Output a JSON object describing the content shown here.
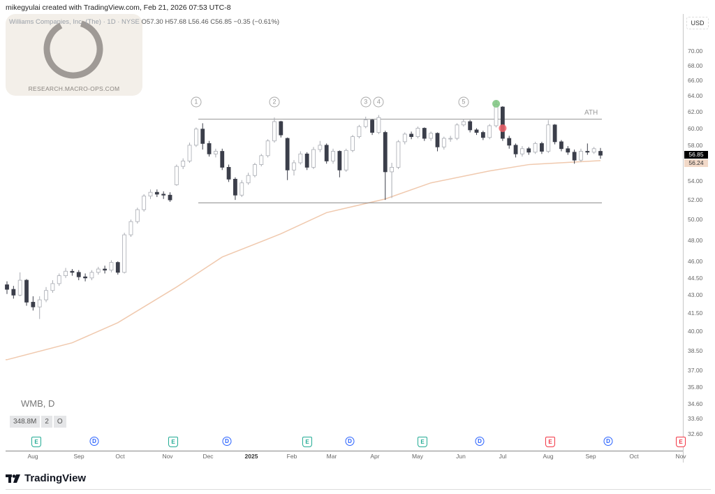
{
  "header": {
    "credit": "mikegyulai created with TradingView.com, Feb 21, 2026 07:53 UTC-8",
    "instrument": "Williams Companies, Inc. (The) · 1D · NYSE",
    "ohlc": "O57.30  H57.68  L56.46  C56.85  −0.35 (−0.61%)"
  },
  "watermark": {
    "text": "RESEARCH.MACRO-OPS.COM"
  },
  "symbol_label": "WMB, D",
  "badges": [
    "348.8M",
    "2",
    "O"
  ],
  "currency": "USD",
  "brand": "TradingView",
  "colors": {
    "up": "#ffffff",
    "up_border": "#a8abb2",
    "down": "#3b3e4a",
    "ma": "#f0c9ae",
    "last_price_bg": "#000000",
    "ma_label_bg": "#f2d9c8",
    "earnings": "#22ab94",
    "earnings_upcoming": "#f23645",
    "dividend": "#2962ff",
    "ath_marker": "#7cc47f",
    "break_marker": "#f0636b"
  },
  "chart_data": {
    "type": "candlestick",
    "scale": "log",
    "ylim": [
      32.6,
      70
    ],
    "grid": false,
    "y_ticks": [
      "70.00",
      "68.00",
      "66.00",
      "64.00",
      "62.00",
      "60.00",
      "58.00",
      "54.00",
      "52.00",
      "50.00",
      "48.00",
      "46.00",
      "44.50",
      "43.00",
      "41.50",
      "40.00",
      "38.50",
      "37.00",
      "35.80",
      "34.60",
      "33.60",
      "32.60"
    ],
    "x_ticks": [
      "Aug",
      "Sep",
      "Oct",
      "Nov",
      "Dec",
      "2025",
      "Feb",
      "Mar",
      "Apr",
      "May",
      "Jun",
      "Jul",
      "Aug",
      "Sep",
      "Oct",
      "Nov"
    ],
    "last_price": "56.85",
    "ma_value": "56.24",
    "candles": [
      [
        43.9,
        44.2,
        43.1,
        43.5
      ],
      [
        43.5,
        43.8,
        42.7,
        43.0
      ],
      [
        43.0,
        45.0,
        42.9,
        44.3
      ],
      [
        44.3,
        44.4,
        42.1,
        42.4
      ],
      [
        42.4,
        42.9,
        41.7,
        42.0
      ],
      [
        42.0,
        42.9,
        41.0,
        42.6
      ],
      [
        42.6,
        43.7,
        42.4,
        43.4
      ],
      [
        43.4,
        44.3,
        43.2,
        44.0
      ],
      [
        44.0,
        44.9,
        43.8,
        44.7
      ],
      [
        44.7,
        45.4,
        44.5,
        45.1
      ],
      [
        45.1,
        45.3,
        44.7,
        45.0
      ],
      [
        45.0,
        45.2,
        44.3,
        44.6
      ],
      [
        44.6,
        44.9,
        44.2,
        44.5
      ],
      [
        44.5,
        45.2,
        44.3,
        45.0
      ],
      [
        45.0,
        45.5,
        44.8,
        45.3
      ],
      [
        45.3,
        45.6,
        44.9,
        45.2
      ],
      [
        45.2,
        46.1,
        45.0,
        45.9
      ],
      [
        45.9,
        46.0,
        44.8,
        45.0
      ],
      [
        45.0,
        48.7,
        44.9,
        48.5
      ],
      [
        48.5,
        50.0,
        48.3,
        49.8
      ],
      [
        49.8,
        51.2,
        49.6,
        51.0
      ],
      [
        51.0,
        52.6,
        50.8,
        52.4
      ],
      [
        52.4,
        53.1,
        52.1,
        52.8
      ],
      [
        52.8,
        53.1,
        52.3,
        52.6
      ],
      [
        52.6,
        52.9,
        52.1,
        52.5
      ],
      [
        52.5,
        52.8,
        51.8,
        52.0
      ],
      [
        53.6,
        55.8,
        53.5,
        55.6
      ],
      [
        55.6,
        56.5,
        55.3,
        56.2
      ],
      [
        56.2,
        58.3,
        56.0,
        58.0
      ],
      [
        58.0,
        60.1,
        57.8,
        59.9
      ],
      [
        59.9,
        60.6,
        57.5,
        58.2
      ],
      [
        58.2,
        58.5,
        56.7,
        57.0
      ],
      [
        57.0,
        57.6,
        56.6,
        57.3
      ],
      [
        57.3,
        57.6,
        55.2,
        55.5
      ],
      [
        55.5,
        55.8,
        53.9,
        54.2
      ],
      [
        54.2,
        54.4,
        52.0,
        52.5
      ],
      [
        52.5,
        54.1,
        52.3,
        53.8
      ],
      [
        53.8,
        54.9,
        53.6,
        54.6
      ],
      [
        54.6,
        56.0,
        54.4,
        55.8
      ],
      [
        55.8,
        57.0,
        55.6,
        56.8
      ],
      [
        56.8,
        58.7,
        56.6,
        58.5
      ],
      [
        58.5,
        61.3,
        58.3,
        60.8
      ],
      [
        60.8,
        60.9,
        58.9,
        59.2
      ],
      [
        58.8,
        58.9,
        54.1,
        55.2
      ],
      [
        55.2,
        56.3,
        54.6,
        56.0
      ],
      [
        56.0,
        57.3,
        55.8,
        57.0
      ],
      [
        57.0,
        57.2,
        55.2,
        55.5
      ],
      [
        55.5,
        57.8,
        55.3,
        57.5
      ],
      [
        57.5,
        58.5,
        57.2,
        58.0
      ],
      [
        58.0,
        58.2,
        55.9,
        56.2
      ],
      [
        56.2,
        57.6,
        55.9,
        57.3
      ],
      [
        57.3,
        57.4,
        54.4,
        55.2
      ],
      [
        55.2,
        57.6,
        55.0,
        57.4
      ],
      [
        57.4,
        59.2,
        57.2,
        59.0
      ],
      [
        59.0,
        60.4,
        58.8,
        60.2
      ],
      [
        60.2,
        61.4,
        60.0,
        61.0
      ],
      [
        61.0,
        61.1,
        59.2,
        59.5
      ],
      [
        59.5,
        61.6,
        59.3,
        61.3
      ],
      [
        59.5,
        59.7,
        52.0,
        55.0
      ],
      [
        55.0,
        56.0,
        52.2,
        55.5
      ],
      [
        55.5,
        58.6,
        55.3,
        58.4
      ],
      [
        58.4,
        59.5,
        58.1,
        59.3
      ],
      [
        59.3,
        59.6,
        58.7,
        59.0
      ],
      [
        59.0,
        60.2,
        58.8,
        60.0
      ],
      [
        60.0,
        60.1,
        58.5,
        58.8
      ],
      [
        58.8,
        59.6,
        58.5,
        59.4
      ],
      [
        59.4,
        59.5,
        57.3,
        57.8
      ],
      [
        57.8,
        59.0,
        57.5,
        58.8
      ],
      [
        58.8,
        59.1,
        58.4,
        58.8
      ],
      [
        58.8,
        60.6,
        58.6,
        60.4
      ],
      [
        60.4,
        61.1,
        60.2,
        60.8
      ],
      [
        60.8,
        61.0,
        59.5,
        59.8
      ],
      [
        59.8,
        60.0,
        59.2,
        59.5
      ],
      [
        59.5,
        59.7,
        58.6,
        58.9
      ],
      [
        58.9,
        60.5,
        58.7,
        60.3
      ],
      [
        60.3,
        63.4,
        60.1,
        62.9
      ],
      [
        62.6,
        62.7,
        58.5,
        58.8
      ],
      [
        58.8,
        59.1,
        57.6,
        58.0
      ],
      [
        58.0,
        58.2,
        56.6,
        57.0
      ],
      [
        57.0,
        57.9,
        56.7,
        57.6
      ],
      [
        57.6,
        57.8,
        56.9,
        57.2
      ],
      [
        57.2,
        58.4,
        57.0,
        58.2
      ],
      [
        58.2,
        58.4,
        57.0,
        57.3
      ],
      [
        57.3,
        61.0,
        57.1,
        60.4
      ],
      [
        60.4,
        60.5,
        58.1,
        58.4
      ],
      [
        58.4,
        58.6,
        57.3,
        57.6
      ],
      [
        57.6,
        57.9,
        56.9,
        57.2
      ],
      [
        57.2,
        57.5,
        55.9,
        56.3
      ],
      [
        56.3,
        57.6,
        56.1,
        57.3
      ],
      [
        57.3,
        58.2,
        56.9,
        57.2
      ],
      [
        57.2,
        57.8,
        57.0,
        57.6
      ],
      [
        57.3,
        57.68,
        56.46,
        56.85
      ]
    ],
    "moving_average": [
      [
        0,
        37.8
      ],
      [
        10,
        39.1
      ],
      [
        17,
        40.7
      ],
      [
        26,
        43.7
      ],
      [
        33,
        46.4
      ],
      [
        42,
        48.6
      ],
      [
        49,
        50.7
      ],
      [
        58,
        52.1
      ],
      [
        65,
        53.8
      ],
      [
        74,
        55.1
      ],
      [
        80,
        55.8
      ],
      [
        91,
        56.24
      ]
    ],
    "levels": {
      "top": 61.1,
      "bottom": 51.7,
      "top_label": "ATH"
    },
    "touch_labels": [
      "1",
      "2",
      "3",
      "4",
      "5"
    ],
    "touch_candles": [
      29,
      41,
      55,
      57,
      70
    ],
    "markers": [
      {
        "type": "ath",
        "candle": 75,
        "value": 63.0
      },
      {
        "type": "break",
        "candle": 76,
        "value": 60.0
      }
    ],
    "events": [
      {
        "type": "E",
        "label": "E",
        "upcoming": false
      },
      {
        "type": "D",
        "label": "D"
      },
      {
        "type": "E",
        "label": "E",
        "upcoming": false
      },
      {
        "type": "D",
        "label": "D"
      },
      {
        "type": "E",
        "label": "E",
        "upcoming": false
      },
      {
        "type": "D",
        "label": "D"
      },
      {
        "type": "E",
        "label": "E",
        "upcoming": false
      },
      {
        "type": "D",
        "label": "D"
      },
      {
        "type": "E",
        "label": "E",
        "upcoming": true
      },
      {
        "type": "D",
        "label": "D"
      },
      {
        "type": "E",
        "label": "E",
        "upcoming": true
      }
    ]
  }
}
